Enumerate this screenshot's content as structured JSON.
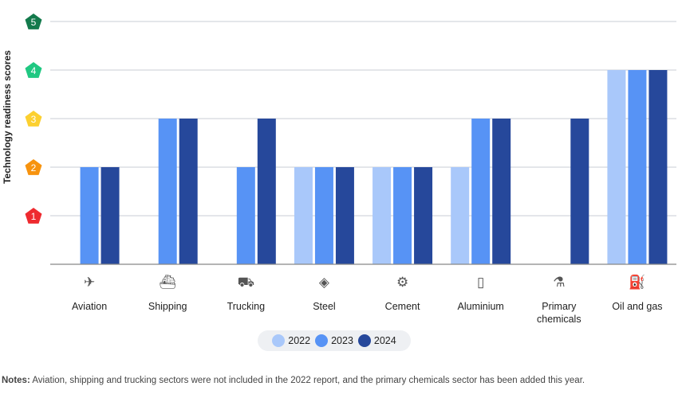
{
  "chart_data": {
    "type": "bar",
    "ylabel": "Technology readiness scores",
    "ylim": [
      0,
      5
    ],
    "yticks": [
      {
        "value": 1,
        "label": "1",
        "color": "#ee2a2f"
      },
      {
        "value": 2,
        "label": "2",
        "color": "#f7930e"
      },
      {
        "value": 3,
        "label": "3",
        "color": "#fcd030"
      },
      {
        "value": 4,
        "label": "4",
        "color": "#20c882"
      },
      {
        "value": 5,
        "label": "5",
        "color": "#137a4c"
      }
    ],
    "grid": true,
    "categories": [
      "Aviation",
      "Shipping",
      "Trucking",
      "Steel",
      "Cement",
      "Aluminium",
      "Primary chemicals",
      "Oil and gas"
    ],
    "category_icons": [
      "airplane-tail-icon",
      "ship-icon",
      "truck-icon",
      "steel-beam-icon",
      "cement-mixer-icon",
      "aluminium-can-icon",
      "chemical-jerrycan-icon",
      "oil-gas-barrel-icon"
    ],
    "series": [
      {
        "name": "2022",
        "color": "#a9c8fa",
        "values": [
          null,
          null,
          null,
          2,
          2,
          2,
          null,
          4
        ]
      },
      {
        "name": "2023",
        "color": "#5793f5",
        "values": [
          2,
          3,
          2,
          2,
          2,
          3,
          null,
          4
        ]
      },
      {
        "name": "2024",
        "color": "#26489b",
        "values": [
          2,
          3,
          3,
          2,
          2,
          3,
          3,
          4
        ]
      }
    ],
    "legend_position": "bottom"
  },
  "notes": {
    "label": "Notes:",
    "text": " Aviation, shipping and trucking sectors were not included in the 2022 report, and the primary chemicals sector has been added this year."
  }
}
